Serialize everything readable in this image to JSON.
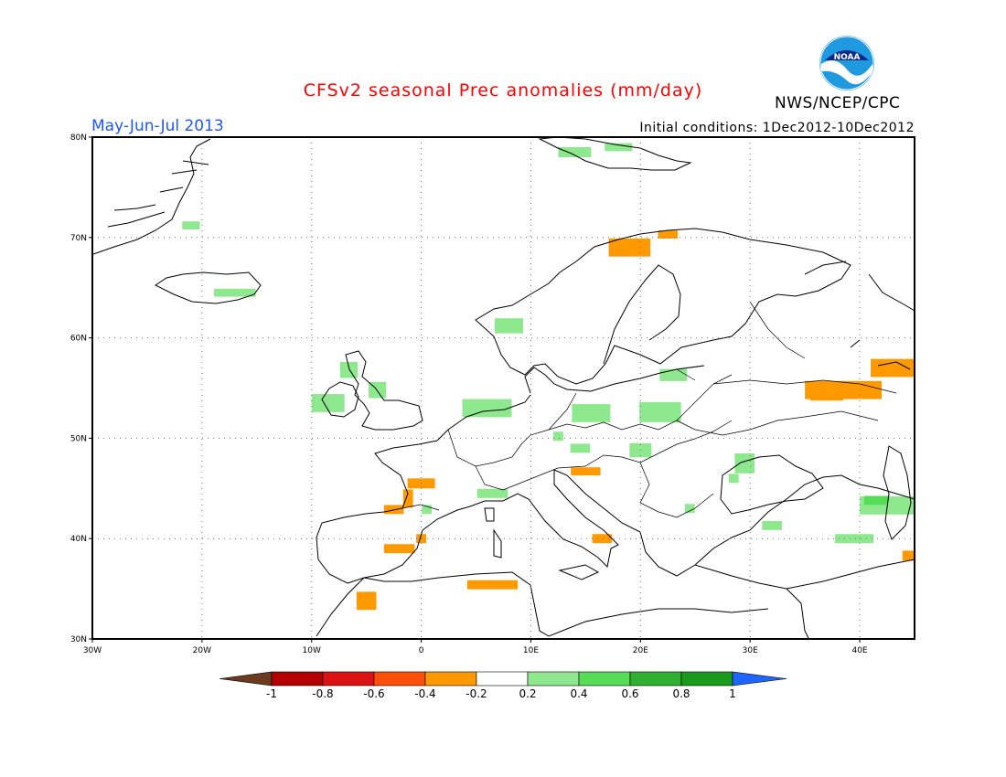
{
  "header": {
    "title": "CFSv2 seasonal Prec anomalies (mm/day)",
    "season": "May-Jun-Jul 2013",
    "initial_conditions": "Initial conditions: 1Dec2012-10Dec2012",
    "agency": "NWS/NCEP/CPC",
    "logo_text": "NOAA"
  },
  "map": {
    "lon_range": [
      -30,
      45
    ],
    "lat_range": [
      30,
      80
    ],
    "x_ticks": [
      "30W",
      "20W",
      "10W",
      "0",
      "10E",
      "20E",
      "30E",
      "40E"
    ],
    "y_ticks": [
      "30N",
      "40N",
      "50N",
      "60N",
      "70N",
      "80N"
    ],
    "grid": "dotted"
  },
  "colorbar": {
    "labels": [
      "-1",
      "-0.8",
      "-0.6",
      "-0.4",
      "-0.2",
      "0.2",
      "0.4",
      "0.6",
      "0.8",
      "1"
    ],
    "colors": [
      "#6b3a1f",
      "#b40000",
      "#dd1111",
      "#ff4d0a",
      "#ff9900",
      "#ffffff",
      "#8ee88e",
      "#55dd55",
      "#2fb02f",
      "#1a9a1a",
      "#1e64ff"
    ]
  },
  "anomalies": [
    {
      "lon": -21,
      "lat": 71.2,
      "w": 1.6,
      "h": 0.8,
      "value": 0.3
    },
    {
      "lon": -17,
      "lat": 64.5,
      "w": 3.8,
      "h": 0.8,
      "value": 0.3
    },
    {
      "lon": 14,
      "lat": 78.5,
      "w": 3.0,
      "h": 1.0,
      "value": 0.3
    },
    {
      "lon": 18,
      "lat": 79.0,
      "w": 2.5,
      "h": 0.8,
      "value": 0.3
    },
    {
      "lon": 19,
      "lat": 69.0,
      "w": 3.8,
      "h": 1.8,
      "value": -0.3
    },
    {
      "lon": 22.5,
      "lat": 70.3,
      "w": 1.8,
      "h": 0.8,
      "value": -0.3
    },
    {
      "lon": 8,
      "lat": 61.2,
      "w": 2.6,
      "h": 1.5,
      "value": 0.3
    },
    {
      "lon": -6.6,
      "lat": 56.8,
      "w": 1.6,
      "h": 1.6,
      "value": 0.3
    },
    {
      "lon": -8.5,
      "lat": 53.5,
      "w": 3.0,
      "h": 1.8,
      "value": 0.3
    },
    {
      "lon": -4,
      "lat": 54.8,
      "w": 1.6,
      "h": 1.6,
      "value": 0.3
    },
    {
      "lon": 6,
      "lat": 53.0,
      "w": 4.5,
      "h": 1.8,
      "value": 0.3
    },
    {
      "lon": 15.5,
      "lat": 52.5,
      "w": 3.5,
      "h": 1.8,
      "value": 0.3
    },
    {
      "lon": 21.8,
      "lat": 52.6,
      "w": 3.8,
      "h": 2.0,
      "value": 0.3
    },
    {
      "lon": 23,
      "lat": 56.3,
      "w": 2.5,
      "h": 1.2,
      "value": 0.3
    },
    {
      "lon": 12.5,
      "lat": 50.2,
      "w": 0.9,
      "h": 0.9,
      "value": 0.3
    },
    {
      "lon": 14.5,
      "lat": 49.0,
      "w": 1.8,
      "h": 0.9,
      "value": 0.3
    },
    {
      "lon": 20,
      "lat": 48.8,
      "w": 2.0,
      "h": 1.4,
      "value": 0.3
    },
    {
      "lon": 29.5,
      "lat": 47.5,
      "w": 1.8,
      "h": 2.0,
      "value": 0.3
    },
    {
      "lon": 28.5,
      "lat": 46.0,
      "w": 0.9,
      "h": 0.9,
      "value": 0.3
    },
    {
      "lon": 6.5,
      "lat": 44.5,
      "w": 2.8,
      "h": 0.9,
      "value": 0.3
    },
    {
      "lon": 24.5,
      "lat": 43.0,
      "w": 0.9,
      "h": 0.9,
      "value": 0.3
    },
    {
      "lon": 32,
      "lat": 41.3,
      "w": 1.8,
      "h": 0.9,
      "value": 0.3
    },
    {
      "lon": 39.5,
      "lat": 40.0,
      "w": 3.5,
      "h": 0.9,
      "value": 0.3
    },
    {
      "lon": 42.5,
      "lat": 43.3,
      "w": 5.0,
      "h": 1.8,
      "value": 0.3
    },
    {
      "lon": 41.5,
      "lat": 43.8,
      "w": 2.2,
      "h": 0.9,
      "value": 0.5
    },
    {
      "lon": 38.5,
      "lat": 54.8,
      "w": 7.0,
      "h": 1.8,
      "value": -0.3
    },
    {
      "lon": 43,
      "lat": 57.0,
      "w": 4.0,
      "h": 1.8,
      "value": -0.3
    },
    {
      "lon": 37,
      "lat": 54.2,
      "w": 3.0,
      "h": 0.9,
      "value": -0.3
    },
    {
      "lon": 15,
      "lat": 46.7,
      "w": 2.7,
      "h": 0.8,
      "value": -0.3
    },
    {
      "lon": 0,
      "lat": 45.5,
      "w": 2.5,
      "h": 1.0,
      "value": -0.3
    },
    {
      "lon": -1.2,
      "lat": 44.0,
      "w": 0.9,
      "h": 1.8,
      "value": -0.3
    },
    {
      "lon": -2.5,
      "lat": 42.9,
      "w": 1.8,
      "h": 0.9,
      "value": -0.3
    },
    {
      "lon": 0.5,
      "lat": 42.9,
      "w": 0.9,
      "h": 0.9,
      "value": 0.3
    },
    {
      "lon": -2,
      "lat": 39.0,
      "w": 2.8,
      "h": 0.9,
      "value": -0.3
    },
    {
      "lon": 0,
      "lat": 40.0,
      "w": 0.9,
      "h": 0.9,
      "value": -0.3
    },
    {
      "lon": 16.5,
      "lat": 40.0,
      "w": 1.8,
      "h": 0.9,
      "value": -0.3
    },
    {
      "lon": 6.5,
      "lat": 35.4,
      "w": 4.6,
      "h": 0.9,
      "value": -0.3
    },
    {
      "lon": -5,
      "lat": 33.8,
      "w": 1.8,
      "h": 1.8,
      "value": -0.3
    },
    {
      "lon": 44.5,
      "lat": 38.3,
      "w": 1.2,
      "h": 1.0,
      "value": -0.3
    }
  ]
}
